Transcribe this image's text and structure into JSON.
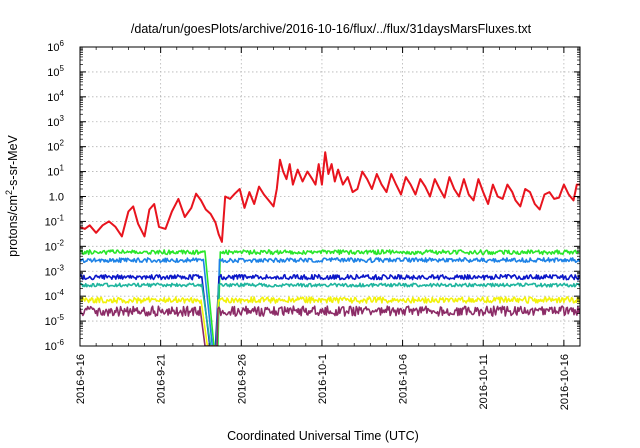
{
  "chart_data": {
    "type": "line",
    "title": "/data/run/goesPlots/archive/2016-10-16/flux/../flux/31daysMarsFluxes.txt",
    "xlabel": "Coordinated Universal Time (UTC)",
    "ylabel": {
      "pre": "protons/cm",
      "sup": "2",
      "post": "-s-sr-MeV"
    },
    "x_start": "2016-09-16",
    "x_end": "2016-10-17",
    "xlim_days": [
      0,
      31
    ],
    "xticks": [
      {
        "label": "2016-9-16",
        "day": 0
      },
      {
        "label": "2016-9-21",
        "day": 5
      },
      {
        "label": "2016-9-26",
        "day": 10
      },
      {
        "label": "2016-10-1",
        "day": 15
      },
      {
        "label": "2016-10-6",
        "day": 20
      },
      {
        "label": "2016-10-11",
        "day": 25
      },
      {
        "label": "2016-10-16",
        "day": 30
      }
    ],
    "y_scale": "log",
    "ylim": [
      1e-06,
      1000000.0
    ],
    "yticks": [
      {
        "base": "10",
        "exp": "6",
        "value": 1000000.0
      },
      {
        "base": "10",
        "exp": "5",
        "value": 100000.0
      },
      {
        "base": "10",
        "exp": "4",
        "value": 10000.0
      },
      {
        "base": "10",
        "exp": "3",
        "value": 1000.0
      },
      {
        "base": "10",
        "exp": "2",
        "value": 100.0
      },
      {
        "base": "10",
        "exp": "1",
        "value": 10.0
      },
      {
        "base": "1.0",
        "exp": "",
        "value": 1
      },
      {
        "base": "10",
        "exp": "-1",
        "value": 0.1
      },
      {
        "base": "10",
        "exp": "-2",
        "value": 0.01
      },
      {
        "base": "10",
        "exp": "-3",
        "value": 0.001
      },
      {
        "base": "10",
        "exp": "-4",
        "value": 0.0001
      },
      {
        "base": "10",
        "exp": "-5",
        "value": 1e-05
      },
      {
        "base": "10",
        "exp": "-6",
        "value": 1e-06
      }
    ],
    "grid": true,
    "series": [
      {
        "color": "#e8141e",
        "points": [
          [
            0,
            0.06
          ],
          [
            0.3,
            0.05
          ],
          [
            0.6,
            0.07
          ],
          [
            1.0,
            0.035
          ],
          [
            1.4,
            0.07
          ],
          [
            1.8,
            0.1
          ],
          [
            2.2,
            0.06
          ],
          [
            2.6,
            0.025
          ],
          [
            3.0,
            0.25
          ],
          [
            3.3,
            0.4
          ],
          [
            3.6,
            0.08
          ],
          [
            4.0,
            0.025
          ],
          [
            4.3,
            0.3
          ],
          [
            4.6,
            0.5
          ],
          [
            4.9,
            0.06
          ],
          [
            5.3,
            0.05
          ],
          [
            5.7,
            0.25
          ],
          [
            6.1,
            0.8
          ],
          [
            6.5,
            0.15
          ],
          [
            6.9,
            0.35
          ],
          [
            7.2,
            1.3
          ],
          [
            7.5,
            0.7
          ],
          [
            7.8,
            0.3
          ],
          [
            8.1,
            0.2
          ],
          [
            8.4,
            0.09
          ],
          [
            8.6,
            0.03
          ],
          [
            8.8,
            0.015
          ],
          [
            9.0,
            1.0
          ],
          [
            9.3,
            0.8
          ],
          [
            9.6,
            1.3
          ],
          [
            9.9,
            2.0
          ],
          [
            10.2,
            0.35
          ],
          [
            10.5,
            1.5
          ],
          [
            10.8,
            0.5
          ],
          [
            11.1,
            2.5
          ],
          [
            11.4,
            1.2
          ],
          [
            11.7,
            0.7
          ],
          [
            12.0,
            0.4
          ],
          [
            12.2,
            2.0
          ],
          [
            12.4,
            30
          ],
          [
            12.6,
            10
          ],
          [
            12.8,
            5
          ],
          [
            13.0,
            20
          ],
          [
            13.2,
            3
          ],
          [
            13.5,
            12
          ],
          [
            13.8,
            4
          ],
          [
            14.1,
            10
          ],
          [
            14.4,
            5
          ],
          [
            14.6,
            3
          ],
          [
            14.8,
            20
          ],
          [
            15.0,
            3
          ],
          [
            15.2,
            60
          ],
          [
            15.4,
            8
          ],
          [
            15.6,
            20
          ],
          [
            15.8,
            4
          ],
          [
            16.0,
            12
          ],
          [
            16.3,
            3
          ],
          [
            16.6,
            6
          ],
          [
            16.9,
            1.5
          ],
          [
            17.2,
            2
          ],
          [
            17.5,
            10
          ],
          [
            17.8,
            5
          ],
          [
            18.1,
            2
          ],
          [
            18.4,
            8
          ],
          [
            18.7,
            3
          ],
          [
            19.0,
            1.5
          ],
          [
            19.3,
            8
          ],
          [
            19.6,
            3
          ],
          [
            19.9,
            1.2
          ],
          [
            20.2,
            6
          ],
          [
            20.5,
            3
          ],
          [
            20.8,
            1.2
          ],
          [
            21.1,
            5
          ],
          [
            21.4,
            2.5
          ],
          [
            21.7,
            1.0
          ],
          [
            22.0,
            5
          ],
          [
            22.3,
            2
          ],
          [
            22.6,
            0.9
          ],
          [
            22.9,
            6
          ],
          [
            23.2,
            2
          ],
          [
            23.5,
            1.0
          ],
          [
            23.8,
            5
          ],
          [
            24.1,
            1.2
          ],
          [
            24.4,
            0.7
          ],
          [
            24.7,
            5
          ],
          [
            25.0,
            1.5
          ],
          [
            25.3,
            0.5
          ],
          [
            25.6,
            3
          ],
          [
            25.9,
            1
          ],
          [
            26.2,
            0.8
          ],
          [
            26.5,
            3
          ],
          [
            26.8,
            1.5
          ],
          [
            27.0,
            0.7
          ],
          [
            27.3,
            0.4
          ],
          [
            27.6,
            2
          ],
          [
            27.9,
            1.5
          ],
          [
            28.2,
            0.5
          ],
          [
            28.5,
            0.3
          ],
          [
            28.8,
            1.2
          ],
          [
            29.1,
            1.5
          ],
          [
            29.4,
            0.8
          ],
          [
            29.7,
            0.9
          ],
          [
            30.0,
            3
          ],
          [
            30.3,
            1.2
          ],
          [
            30.6,
            0.7
          ],
          [
            30.8,
            3
          ],
          [
            31,
            3
          ]
        ]
      },
      {
        "color": "#29e62a",
        "level": 0.0058,
        "jitter": 0.09,
        "seed": 11,
        "dropout": [
          [
            7.75,
            0.006
          ],
          [
            8.3,
            1e-06
          ],
          [
            8.55,
            1e-06
          ],
          [
            8.7,
            0.006
          ]
        ]
      },
      {
        "color": "#1e82e6",
        "level": 0.0028,
        "jitter": 0.09,
        "seed": 23,
        "dropout": [
          [
            7.65,
            0.003
          ],
          [
            8.2,
            1e-06
          ],
          [
            8.5,
            1e-06
          ],
          [
            8.65,
            0.003
          ]
        ]
      },
      {
        "color": "#0b16c8",
        "level": 0.00058,
        "jitter": 0.1,
        "seed": 37,
        "dropout": [
          [
            7.55,
            0.0006
          ],
          [
            8.05,
            1e-06
          ],
          [
            8.4,
            1e-06
          ],
          [
            8.62,
            0.0006
          ]
        ]
      },
      {
        "color": "#1fb59e",
        "level": 0.00028,
        "jitter": 0.07,
        "seed": 41,
        "dropout": [
          [
            7.55,
            0.0003
          ],
          [
            8.1,
            1e-06
          ],
          [
            8.45,
            1e-06
          ],
          [
            8.6,
            0.0003
          ]
        ]
      },
      {
        "color": "#f2f20a",
        "level": 7e-05,
        "jitter": 0.12,
        "seed": 53,
        "dropout": [
          [
            7.5,
            7e-05
          ],
          [
            7.9,
            1e-06
          ],
          [
            8.5,
            1e-06
          ],
          [
            8.58,
            7e-05
          ]
        ]
      },
      {
        "color": "#8c2c67",
        "level": 2.5e-05,
        "jitter": 0.2,
        "seed": 67,
        "dropout": [
          [
            7.45,
            3e-05
          ],
          [
            7.75,
            1e-06
          ],
          [
            8.5,
            1e-06
          ],
          [
            8.55,
            3e-05
          ]
        ]
      }
    ]
  }
}
